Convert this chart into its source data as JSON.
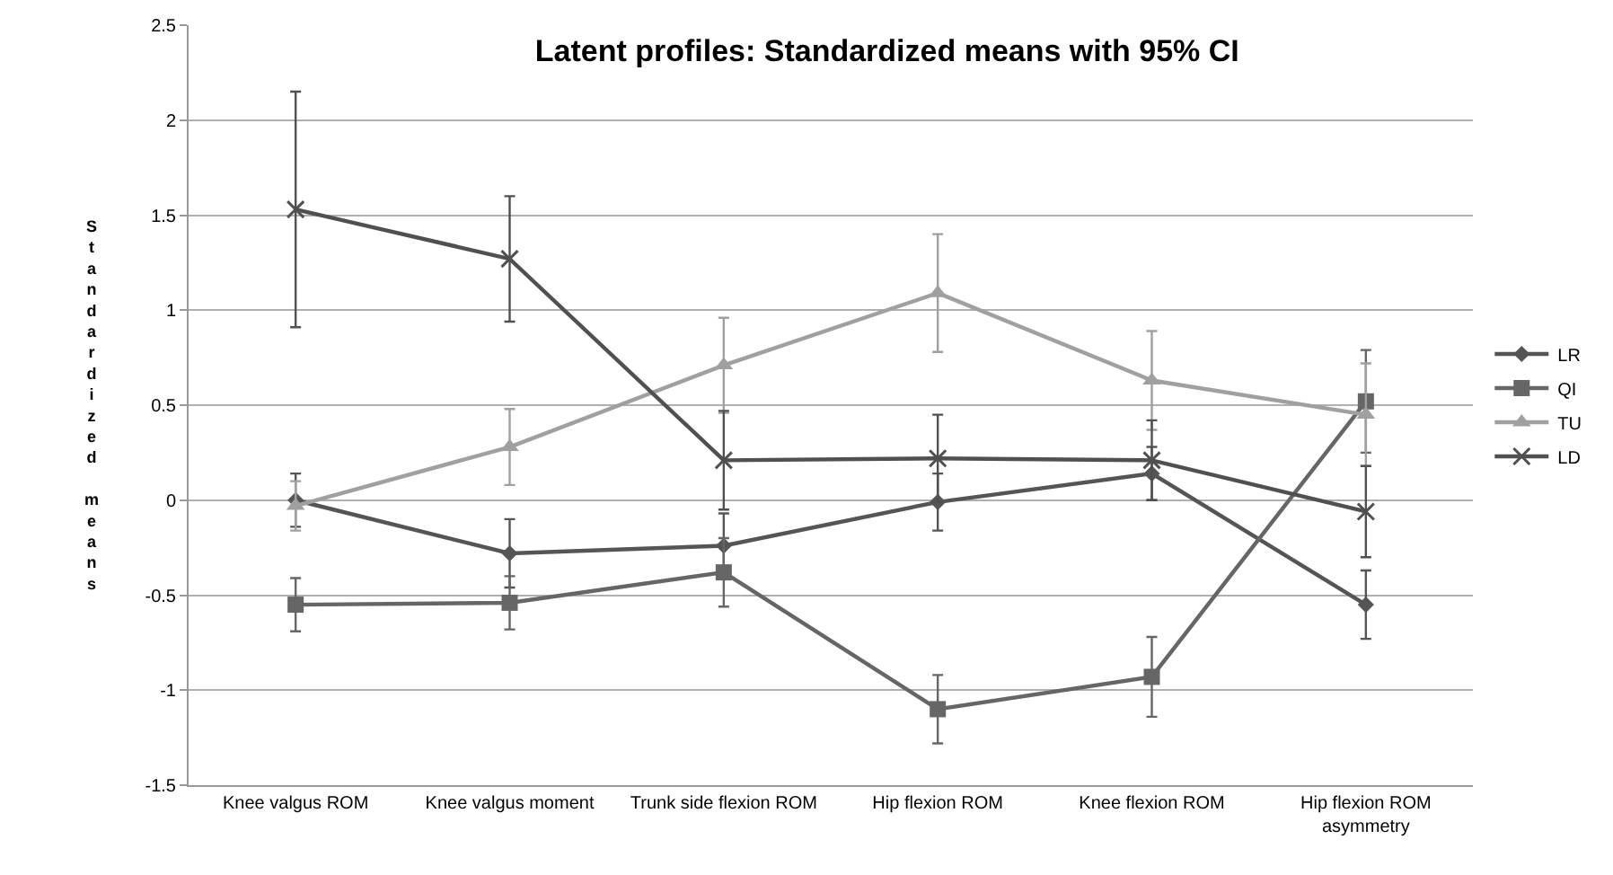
{
  "chart_data": {
    "type": "line",
    "title": "Latent profiles: Standardized means with 95% CI",
    "ylabel": "Standardized means",
    "categories": [
      "Knee valgus ROM",
      "Knee valgus moment",
      "Trunk side flexion ROM",
      "Hip flexion ROM",
      "Knee flexion ROM",
      "Hip flexion ROM asymmetry"
    ],
    "series": [
      {
        "name": "LR",
        "color": "#555555",
        "marker": "diamond",
        "values": [
          0,
          -0.28,
          -0.24,
          -0.01,
          0.14,
          -0.55
        ],
        "errors": [
          0.14,
          0.18,
          0.17,
          0.15,
          0.14,
          0.18
        ]
      },
      {
        "name": "QI",
        "color": "#666666",
        "marker": "square",
        "values": [
          -0.55,
          -0.54,
          -0.38,
          -1.1,
          -0.93,
          0.52
        ],
        "errors": [
          0.14,
          0.14,
          0.18,
          0.18,
          0.21,
          0.27
        ]
      },
      {
        "name": "TU",
        "color": "#a0a0a0",
        "marker": "triangle",
        "values": [
          -0.03,
          0.28,
          0.71,
          1.09,
          0.63,
          0.45
        ],
        "errors": [
          0.13,
          0.2,
          0.25,
          0.31,
          0.26,
          0.27
        ]
      },
      {
        "name": "LD",
        "color": "#505050",
        "marker": "cross",
        "values": [
          1.53,
          1.27,
          0.21,
          0.22,
          0.21,
          -0.06
        ],
        "errors": [
          0.62,
          0.33,
          0.26,
          0.23,
          0.21,
          0.24
        ]
      }
    ],
    "ylim": [
      -1.5,
      2.5
    ],
    "yticks": [
      -1.5,
      -1,
      -0.5,
      0,
      0.5,
      1,
      1.5,
      2,
      2.5
    ],
    "grid": "y",
    "legend": "right"
  }
}
